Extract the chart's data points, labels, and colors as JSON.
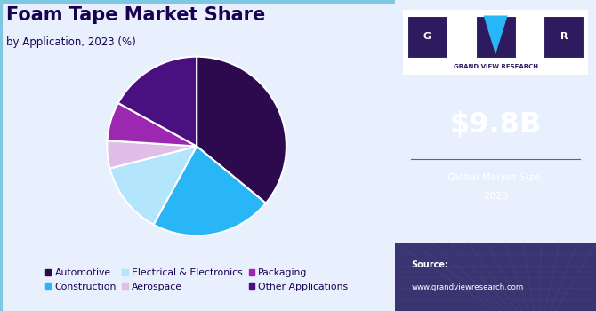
{
  "title": "Foam Tape Market Share",
  "subtitle": "by Application, 2023 (%)",
  "slices": [
    {
      "label": "Automotive",
      "value": 36,
      "color": "#2d0a4e"
    },
    {
      "label": "Construction",
      "value": 22,
      "color": "#29b6f6"
    },
    {
      "label": "Electrical & Electronics",
      "value": 13,
      "color": "#b3e5fc"
    },
    {
      "label": "Aerospace",
      "value": 5,
      "color": "#e1bee7"
    },
    {
      "label": "Packaging",
      "value": 7,
      "color": "#9c27b0"
    },
    {
      "label": "Other Applications",
      "value": 17,
      "color": "#4a1080"
    }
  ],
  "startangle": 90,
  "market_size": "$9.8B",
  "market_label": "Global Market Size,\n2023",
  "source_label": "Source:",
  "source_url": "www.grandviewresearch.com",
  "right_bg": "#2e1a5e",
  "right_bottom_bg": "#3a3570",
  "left_bg": "#e8f0fe",
  "border_color": "#7ec8e3",
  "title_color": "#1a0050",
  "white": "#ffffff",
  "edge_color": "#ffffff",
  "logo_white_bg": "#ffffff",
  "logo_dark_bg": "#2e1a5e",
  "logo_blue": "#29b6f6",
  "divider_color": "#6060a0",
  "grid_color": "#4a4890"
}
